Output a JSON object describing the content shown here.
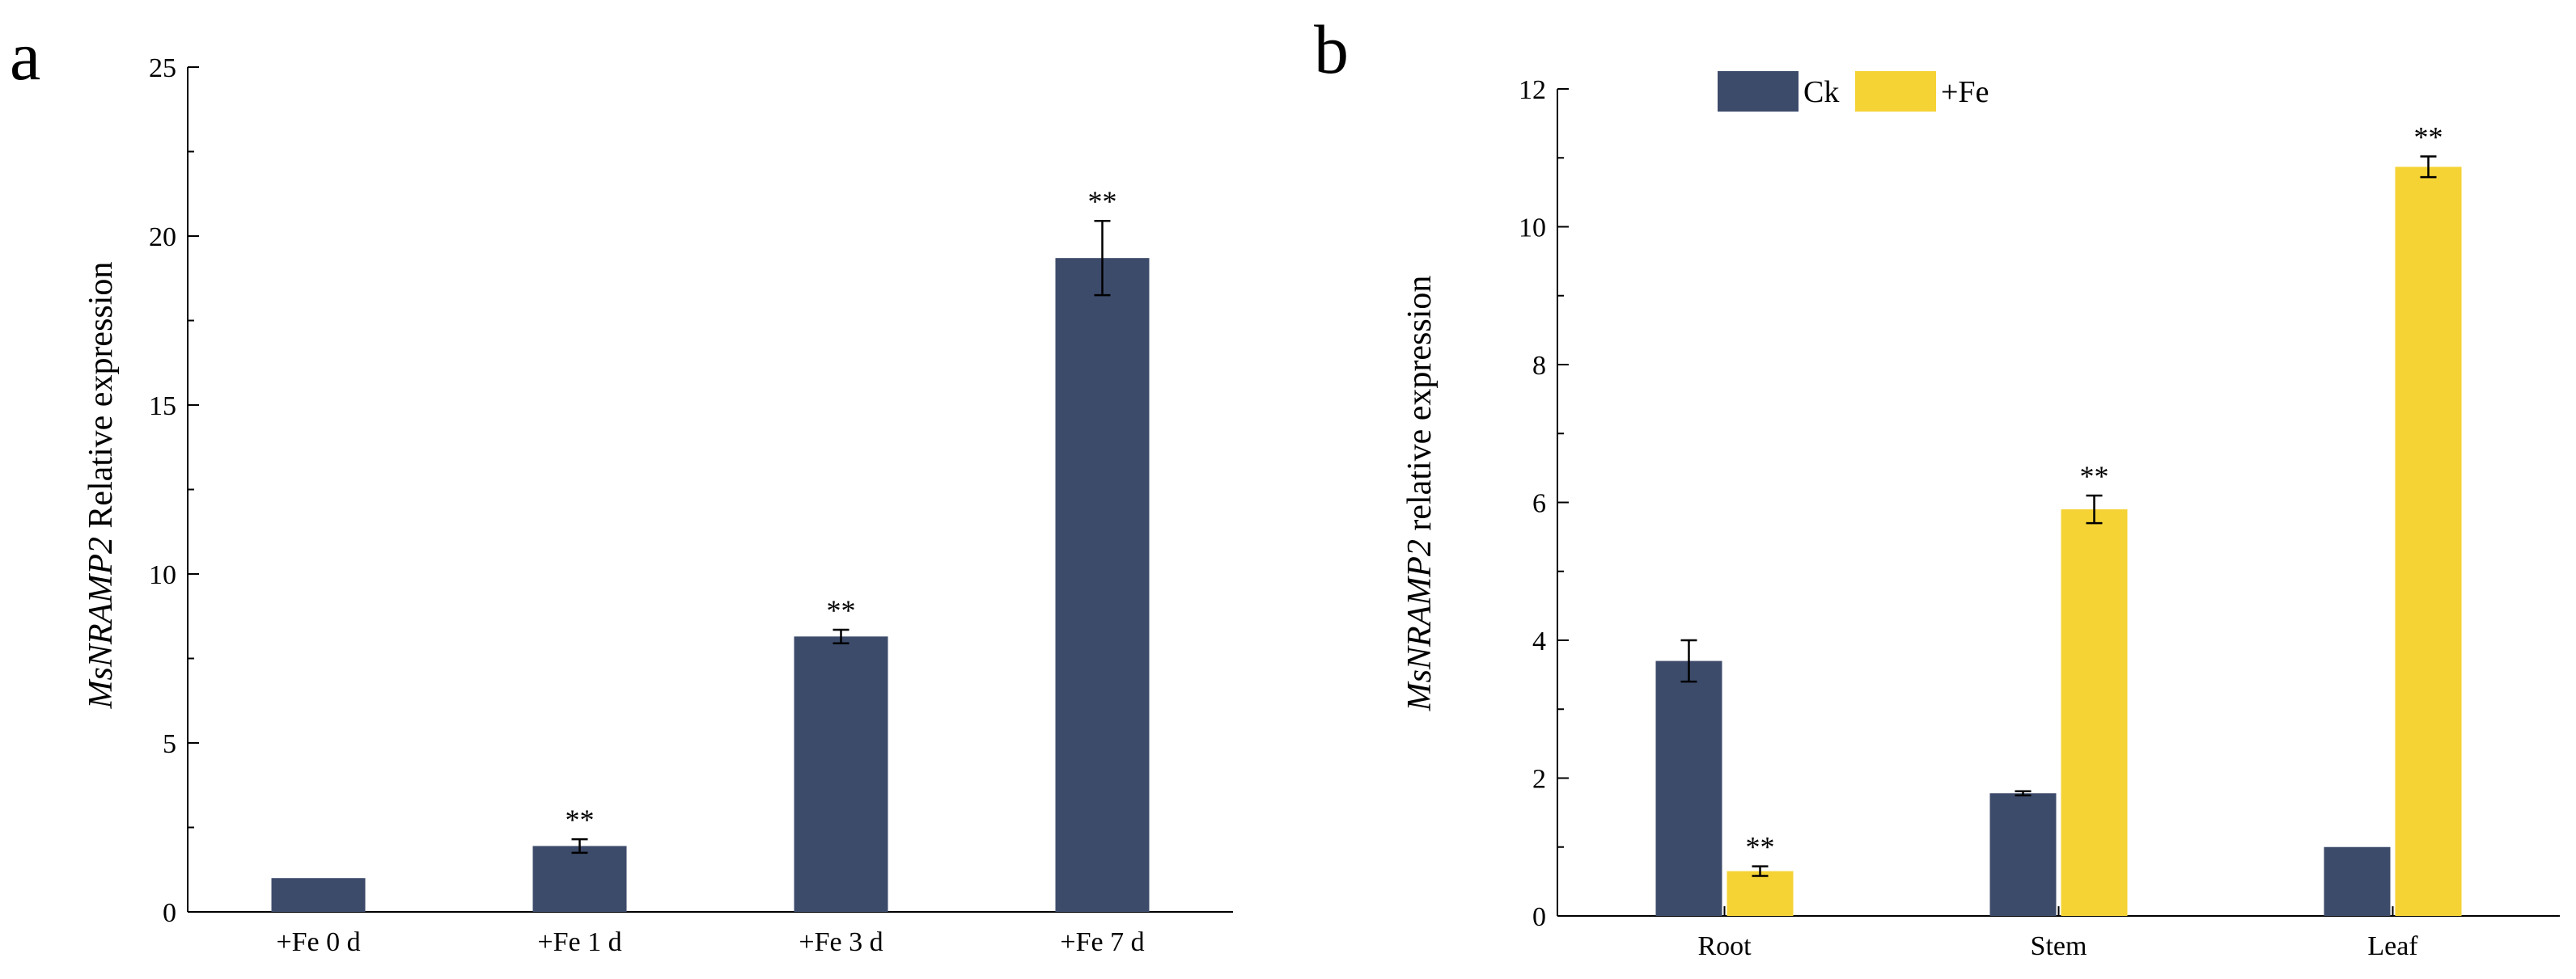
{
  "chart_data": [
    {
      "panel": "a",
      "type": "bar",
      "categories": [
        "+Fe 0 d",
        "+Fe 1 d",
        "+Fe 3 d",
        "+Fe 7 d"
      ],
      "values": [
        1.0,
        1.95,
        8.15,
        19.35
      ],
      "errors": [
        0.0,
        0.2,
        0.2,
        1.1
      ],
      "significance": [
        "",
        "**",
        "**",
        "**"
      ],
      "ylabel_italic": "MsNRAMP2",
      "ylabel_rest": " Relative expression",
      "xlabel": "",
      "ylim": [
        0,
        25
      ],
      "yticks": [
        0,
        5,
        10,
        15,
        20,
        25
      ],
      "color": "#3d4b6b",
      "grid": false
    },
    {
      "panel": "b",
      "type": "bar",
      "categories": [
        "Root",
        "Stem",
        "Leaf"
      ],
      "series": [
        {
          "name": "Ck",
          "color": "#3d4b6b",
          "values": [
            3.7,
            1.78,
            1.0
          ],
          "errors": [
            0.3,
            0.03,
            0.0
          ],
          "significance": [
            "",
            "",
            ""
          ]
        },
        {
          "name": "+Fe",
          "color": "#f5d335",
          "values": [
            0.65,
            5.9,
            10.87
          ],
          "errors": [
            0.07,
            0.2,
            0.15
          ],
          "significance": [
            "**",
            "**",
            "**"
          ]
        }
      ],
      "ylabel_italic": "MsNRAMP2",
      "ylabel_rest": " relative expression",
      "xlabel": "",
      "ylim": [
        0,
        12
      ],
      "yticks": [
        0,
        2,
        4,
        6,
        8,
        10,
        12
      ],
      "legend_position": "top-left",
      "grid": false
    }
  ]
}
